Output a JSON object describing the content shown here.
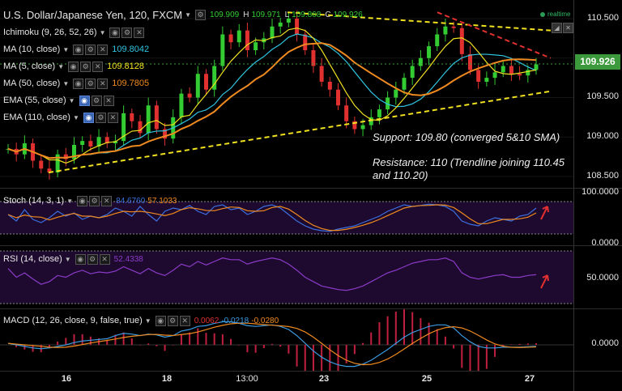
{
  "header": {
    "symbol": "U.S. Dollar/Japanese Yen, 120, FXCM",
    "ohlc_o": "109.909",
    "ohlc_h_label": "H",
    "ohlc_h": "109.971",
    "ohlc_l_label": "L",
    "ohlc_l": "109.868",
    "ohlc_c_label": "C",
    "ohlc_c": "109.926",
    "realtime": "realtime"
  },
  "indicators": [
    {
      "label": "Ichimoku (9, 26, 52, 26)",
      "value": "",
      "color": "#ffffff"
    },
    {
      "label": "MA (10, close)",
      "value": "109.8042",
      "color": "#2ec4e0"
    },
    {
      "label": "MA (5, close)",
      "value": "109.8128",
      "color": "#f0e020"
    },
    {
      "label": "MA (50, close)",
      "value": "109.7805",
      "color": "#f08a20"
    },
    {
      "label": "EMA (55, close)",
      "value": "",
      "color": "#ffffff"
    },
    {
      "label": "EMA (110, close)",
      "value": "",
      "color": "#ffffff"
    }
  ],
  "annotations": {
    "support": "Support: 109.80 (converged 5&10 SMA)",
    "resistance_1": "Resistance: 110 (Trendline joining 110.45",
    "resistance_2": "and 110.20)"
  },
  "price_axis": {
    "ticks": [
      "110.500",
      "110.000",
      "109.500",
      "109.000",
      "108.500"
    ],
    "current": "109.926"
  },
  "stoch": {
    "label": "Stoch (14, 3, 1)",
    "k": "84.6760",
    "d": "57.1033",
    "ticks": [
      "100.0000",
      "0.0000"
    ]
  },
  "rsi": {
    "label": "RSI (14, close)",
    "value": "52.4338",
    "ticks": [
      "50.0000"
    ]
  },
  "macd": {
    "label": "MACD (12, 26, close, 9, false, true)",
    "hist": "0.0062",
    "macd": "-0.0218",
    "signal": "-0.0280",
    "ticks": [
      "0.0000"
    ]
  },
  "x_axis": {
    "labels": [
      "16",
      "18",
      "13:00",
      "23",
      "25",
      "27"
    ]
  },
  "colors": {
    "up": "#33cc33",
    "down": "#e03030",
    "trend_support": "#f0e020",
    "trend_resist": "#e03030",
    "osc_bg": "#1e0a2e",
    "stoch_k": "#3b6fe0",
    "stoch_d": "#f08a20",
    "rsi": "#8a3bc8",
    "macd_line": "#3b9ae0",
    "signal_line": "#f08a20"
  },
  "chart_data": {
    "type": "candlestick",
    "title": "U.S. Dollar/Japanese Yen, 120, FXCM",
    "ylim": [
      108.3,
      110.7
    ],
    "price_path": [
      108.85,
      108.78,
      108.92,
      108.7,
      108.6,
      108.55,
      108.78,
      108.72,
      108.9,
      108.95,
      108.88,
      109.0,
      108.92,
      108.95,
      109.3,
      109.2,
      109.05,
      109.4,
      109.1,
      108.98,
      109.25,
      109.55,
      109.5,
      109.8,
      109.6,
      109.9,
      110.3,
      110.2,
      110.35,
      110.1,
      110.2,
      110.25,
      110.4,
      110.45,
      110.5,
      110.3,
      110.1,
      109.9,
      109.7,
      109.6,
      109.4,
      109.2,
      109.1,
      109.15,
      109.25,
      109.35,
      109.5,
      109.6,
      109.75,
      109.9,
      110.0,
      110.15,
      110.3,
      110.4,
      110.38,
      110.05,
      109.85,
      109.7,
      109.75,
      109.82,
      109.9,
      109.8,
      109.78,
      109.85,
      109.92
    ],
    "stoch": [
      60,
      40,
      75,
      45,
      35,
      50,
      70,
      55,
      65,
      45,
      55,
      50,
      60,
      80,
      70,
      55,
      85,
      60,
      40,
      70,
      80,
      75,
      88,
      70,
      60,
      85,
      90,
      75,
      80,
      60,
      70,
      85,
      90,
      80,
      60,
      40,
      25,
      15,
      10,
      8,
      15,
      20,
      25,
      35,
      45,
      55,
      70,
      80,
      90,
      85,
      88,
      92,
      90,
      85,
      70,
      40,
      30,
      25,
      40,
      50,
      45,
      40,
      55,
      60,
      80
    ],
    "rsi": [
      60,
      50,
      55,
      48,
      42,
      45,
      52,
      50,
      55,
      58,
      54,
      56,
      55,
      57,
      62,
      58,
      54,
      60,
      55,
      52,
      58,
      65,
      62,
      68,
      64,
      68,
      72,
      70,
      70,
      65,
      68,
      70,
      72,
      70,
      65,
      58,
      50,
      45,
      40,
      38,
      36,
      35,
      37,
      40,
      45,
      50,
      55,
      58,
      62,
      66,
      68,
      70,
      70,
      72,
      68,
      55,
      50,
      48,
      50,
      52,
      53,
      50,
      50,
      52,
      53
    ],
    "macd": [
      0.02,
      0.0,
      -0.02,
      -0.04,
      -0.05,
      -0.04,
      -0.02,
      0.0,
      0.03,
      0.05,
      0.06,
      0.07,
      0.08,
      0.12,
      0.15,
      0.14,
      0.12,
      0.14,
      0.13,
      0.1,
      0.12,
      0.18,
      0.2,
      0.24,
      0.25,
      0.28,
      0.3,
      0.3,
      0.28,
      0.25,
      0.24,
      0.25,
      0.26,
      0.24,
      0.2,
      0.12,
      0.02,
      -0.08,
      -0.16,
      -0.22,
      -0.26,
      -0.28,
      -0.28,
      -0.25,
      -0.2,
      -0.13,
      -0.06,
      0.02,
      0.1,
      0.16,
      0.2,
      0.24,
      0.26,
      0.26,
      0.22,
      0.12,
      0.04,
      -0.02,
      -0.04,
      -0.04,
      -0.03,
      -0.03,
      -0.03,
      -0.025,
      -0.02
    ]
  }
}
